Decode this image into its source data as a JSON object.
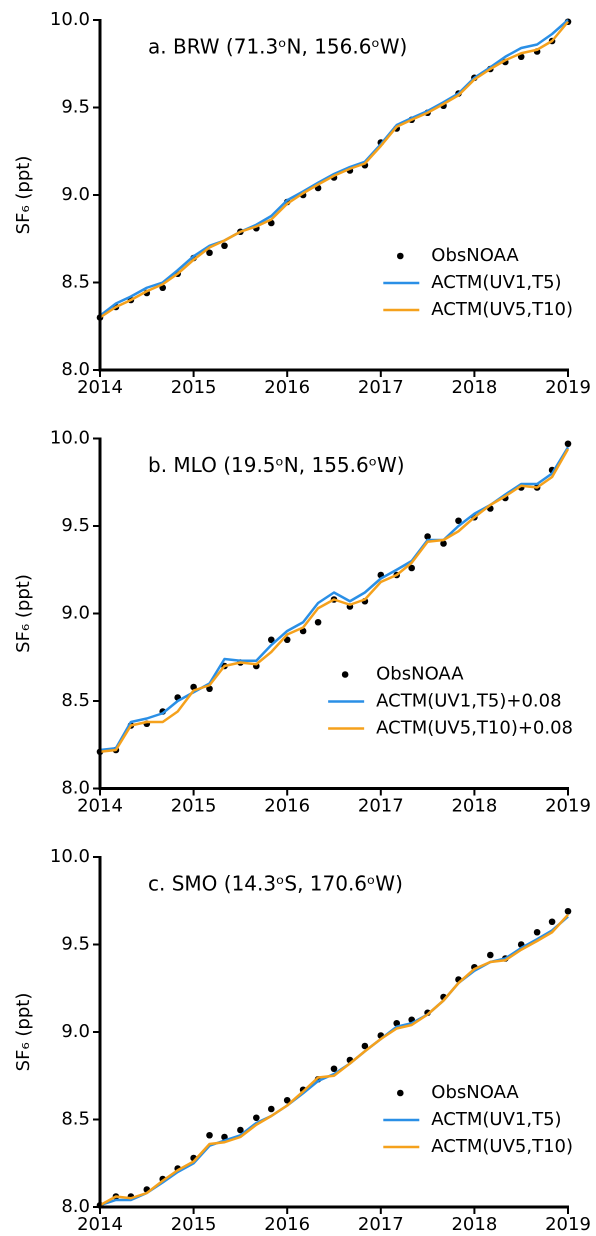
{
  "chart_data": [
    {
      "type": "line",
      "title": "a. BRW (71.3ᵒN, 156.6ᵒW)",
      "y_label": "SF₆ (ppt)",
      "x": [
        2014,
        2014.17,
        2014.33,
        2014.5,
        2014.67,
        2014.83,
        2015,
        2015.17,
        2015.33,
        2015.5,
        2015.67,
        2015.83,
        2016,
        2016.17,
        2016.33,
        2016.5,
        2016.67,
        2016.83,
        2017,
        2017.17,
        2017.33,
        2017.5,
        2017.67,
        2017.83,
        2018,
        2018.17,
        2018.33,
        2018.5,
        2018.67,
        2018.83,
        2019
      ],
      "series": [
        {
          "name": "ObsNOAA",
          "mode": "markers",
          "color": "#000000",
          "values": [
            8.3,
            8.36,
            8.4,
            8.44,
            8.47,
            8.55,
            8.64,
            8.67,
            8.71,
            8.79,
            8.81,
            8.84,
            8.96,
            9.0,
            9.04,
            9.1,
            9.14,
            9.17,
            9.3,
            9.38,
            9.43,
            9.47,
            9.51,
            9.58,
            9.67,
            9.72,
            9.76,
            9.79,
            9.82,
            9.88,
            9.99
          ]
        },
        {
          "name": "ACTM(UV1,T5)",
          "mode": "line",
          "color": "#2a8fe6",
          "values": [
            8.31,
            8.38,
            8.42,
            8.47,
            8.5,
            8.57,
            8.65,
            8.71,
            8.74,
            8.79,
            8.83,
            8.88,
            8.97,
            9.02,
            9.07,
            9.12,
            9.16,
            9.19,
            9.29,
            9.4,
            9.44,
            9.48,
            9.53,
            9.58,
            9.67,
            9.73,
            9.79,
            9.84,
            9.86,
            9.92,
            10.0
          ]
        },
        {
          "name": "ACTM(UV5,T10)",
          "mode": "line",
          "color": "#f5a11c",
          "values": [
            8.3,
            8.36,
            8.4,
            8.45,
            8.49,
            8.55,
            8.63,
            8.7,
            8.74,
            8.79,
            8.82,
            8.86,
            8.95,
            9.01,
            9.06,
            9.11,
            9.15,
            9.18,
            9.28,
            9.39,
            9.43,
            9.47,
            9.52,
            9.57,
            9.66,
            9.72,
            9.77,
            9.81,
            9.83,
            9.88,
            9.99
          ]
        }
      ],
      "xlim": [
        2014,
        2019
      ],
      "xticks": [
        2014,
        2015,
        2016,
        2017,
        2018,
        2019
      ],
      "ylim": [
        8,
        10
      ],
      "yticks": [
        {
          "value": 8,
          "label": "8.0"
        },
        8.5,
        {
          "value": 9,
          "label": "9.0"
        },
        9.5,
        {
          "value": 10,
          "label": "10.0"
        }
      ],
      "legend": "lower right"
    },
    {
      "type": "line",
      "title": "b. MLO (19.5ᵒN, 155.6ᵒW)",
      "y_label": "SF₆ (ppt)",
      "x": [
        2014,
        2014.17,
        2014.33,
        2014.5,
        2014.67,
        2014.83,
        2015,
        2015.17,
        2015.33,
        2015.5,
        2015.67,
        2015.83,
        2016,
        2016.17,
        2016.33,
        2016.5,
        2016.67,
        2016.83,
        2017,
        2017.17,
        2017.33,
        2017.5,
        2017.67,
        2017.83,
        2018,
        2018.17,
        2018.33,
        2018.5,
        2018.67,
        2018.83,
        2019
      ],
      "series": [
        {
          "name": "ObsNOAA",
          "mode": "markers",
          "color": "#000000",
          "values": [
            8.21,
            8.22,
            8.36,
            8.37,
            8.44,
            8.52,
            8.58,
            8.57,
            8.7,
            8.72,
            8.7,
            8.85,
            8.85,
            8.9,
            8.95,
            9.08,
            9.04,
            9.07,
            9.22,
            9.22,
            9.26,
            9.44,
            9.4,
            9.53,
            9.55,
            9.6,
            9.66,
            9.72,
            9.72,
            9.82,
            9.97
          ]
        },
        {
          "name": "ACTM(UV1,T5)+0.08",
          "mode": "line",
          "color": "#2a8fe6",
          "values": [
            8.22,
            8.23,
            8.38,
            8.4,
            8.43,
            8.5,
            8.55,
            8.6,
            8.74,
            8.73,
            8.73,
            8.82,
            8.9,
            8.95,
            9.06,
            9.12,
            9.07,
            9.12,
            9.2,
            9.25,
            9.3,
            9.42,
            9.42,
            9.5,
            9.57,
            9.62,
            9.68,
            9.74,
            9.74,
            9.8,
            9.95
          ]
        },
        {
          "name": "ACTM(UV5,T10)+0.08",
          "mode": "line",
          "color": "#f5a11c",
          "values": [
            8.21,
            8.22,
            8.36,
            8.38,
            8.38,
            8.44,
            8.56,
            8.59,
            8.7,
            8.72,
            8.71,
            8.78,
            8.88,
            8.92,
            9.03,
            9.08,
            9.05,
            9.08,
            9.18,
            9.22,
            9.29,
            9.41,
            9.42,
            9.47,
            9.55,
            9.62,
            9.67,
            9.73,
            9.72,
            9.78,
            9.94
          ]
        }
      ],
      "xlim": [
        2014,
        2019
      ],
      "xticks": [
        2014,
        2015,
        2016,
        2017,
        2018,
        2019
      ],
      "ylim": [
        8,
        10
      ],
      "yticks": [
        {
          "value": 8,
          "label": "8.0"
        },
        8.5,
        {
          "value": 9,
          "label": "9.0"
        },
        9.5,
        {
          "value": 10,
          "label": "10.0"
        }
      ],
      "legend": "lower right"
    },
    {
      "type": "line",
      "title": "c. SMO (14.3ᵒS, 170.6ᵒW)",
      "y_label": "SF₆ (ppt)",
      "x": [
        2014,
        2014.17,
        2014.33,
        2014.5,
        2014.67,
        2014.83,
        2015,
        2015.17,
        2015.33,
        2015.5,
        2015.67,
        2015.83,
        2016,
        2016.17,
        2016.33,
        2016.5,
        2016.67,
        2016.83,
        2017,
        2017.17,
        2017.33,
        2017.5,
        2017.67,
        2017.83,
        2018,
        2018.17,
        2018.33,
        2018.5,
        2018.67,
        2018.83,
        2019
      ],
      "series": [
        {
          "name": "ObsNOAA",
          "mode": "markers",
          "color": "#000000",
          "values": [
            8.01,
            8.06,
            8.06,
            8.1,
            8.16,
            8.22,
            8.28,
            8.41,
            8.4,
            8.44,
            8.51,
            8.56,
            8.61,
            8.67,
            8.73,
            8.79,
            8.84,
            8.92,
            8.98,
            9.05,
            9.07,
            9.11,
            9.2,
            9.3,
            9.37,
            9.44,
            9.42,
            9.5,
            9.57,
            9.63,
            9.69
          ]
        },
        {
          "name": "ACTM(UV1,T5)",
          "mode": "line",
          "color": "#2a8fe6",
          "values": [
            8.01,
            8.04,
            8.04,
            8.08,
            8.14,
            8.2,
            8.25,
            8.35,
            8.38,
            8.41,
            8.48,
            8.52,
            8.58,
            8.65,
            8.72,
            8.76,
            8.82,
            8.89,
            8.96,
            9.03,
            9.05,
            9.1,
            9.18,
            9.28,
            9.35,
            9.4,
            9.42,
            9.48,
            9.53,
            9.58,
            9.66
          ]
        },
        {
          "name": "ACTM(UV5,T10)",
          "mode": "line",
          "color": "#f5a11c",
          "values": [
            8.01,
            8.06,
            8.05,
            8.08,
            8.15,
            8.21,
            8.26,
            8.36,
            8.37,
            8.4,
            8.47,
            8.52,
            8.58,
            8.66,
            8.74,
            8.75,
            8.82,
            8.89,
            8.96,
            9.02,
            9.04,
            9.1,
            9.18,
            9.28,
            9.36,
            9.4,
            9.41,
            9.47,
            9.52,
            9.57,
            9.67
          ]
        }
      ],
      "xlim": [
        2014,
        2019
      ],
      "xticks": [
        2014,
        2015,
        2016,
        2017,
        2018,
        2019
      ],
      "ylim": [
        8,
        10
      ],
      "yticks": [
        {
          "value": 8,
          "label": "8.0"
        },
        8.5,
        {
          "value": 9,
          "label": "9.0"
        },
        9.5,
        {
          "value": 10,
          "label": "10.0"
        }
      ],
      "legend": "lower right"
    }
  ]
}
